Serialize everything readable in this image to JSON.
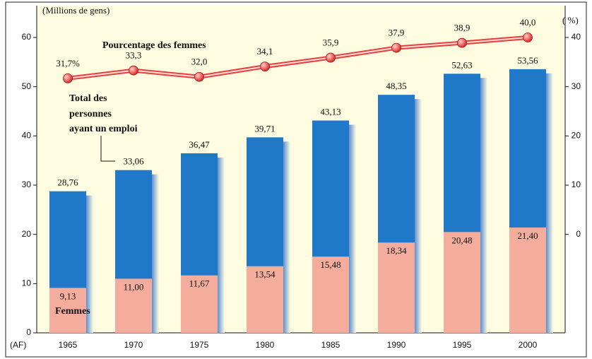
{
  "chart_data": {
    "type": "bar",
    "y_label": "(Millions de gens)",
    "y2_label": "( %)",
    "x_label": "(AF)",
    "categories": [
      "1965",
      "1970",
      "1975",
      "1980",
      "1985",
      "1990",
      "1995",
      "2000"
    ],
    "series": [
      {
        "name": "Total des personnes ayant un emploi",
        "name_lines": [
          "Total des",
          "personnes",
          "ayant un emploi"
        ],
        "color": "#1f78c8",
        "values": [
          28.76,
          33.06,
          36.47,
          39.71,
          43.13,
          48.35,
          52.63,
          53.56
        ],
        "value_labels": [
          "28,76",
          "33,06",
          "36,47",
          "39,71",
          "43,13",
          "48,35",
          "52,63",
          "53,56"
        ]
      },
      {
        "name": "Femmes",
        "color": "#f4ad9c",
        "values": [
          9.13,
          11.0,
          11.67,
          13.54,
          15.48,
          18.34,
          20.48,
          21.4
        ],
        "value_labels": [
          "9,13",
          "11,00",
          "11,67",
          "13,54",
          "15,48",
          "18,34",
          "20,48",
          "21,40"
        ]
      },
      {
        "name": "Pourcentage des femmes",
        "type": "line",
        "axis": "y2",
        "color": "#e8403c",
        "values": [
          31.7,
          33.3,
          32.0,
          34.1,
          35.9,
          37.9,
          38.9,
          40.0
        ],
        "value_labels": [
          "31,7%",
          "33,3",
          "32,0",
          "34,1",
          "35,9",
          "37,9",
          "38,9",
          "40,0"
        ]
      }
    ],
    "ylim": [
      0,
      60
    ],
    "yticks": [
      0,
      10,
      20,
      30,
      40,
      50,
      60
    ],
    "y2lim": [
      -20,
      40
    ],
    "y2ticks": [
      0,
      10,
      20,
      30,
      40
    ]
  }
}
